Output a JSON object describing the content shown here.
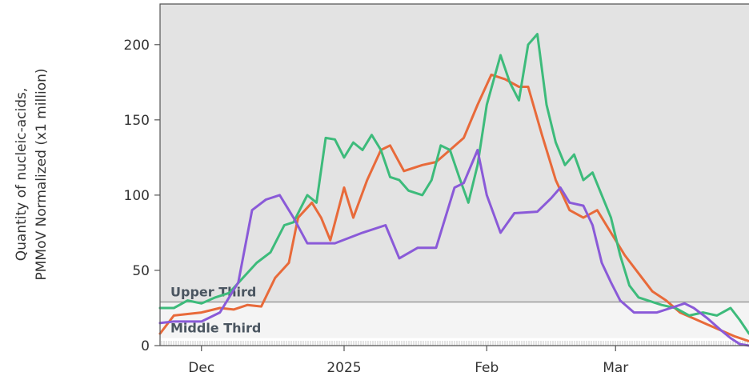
{
  "chart_data": {
    "type": "line",
    "ylabel_line1": "Quantity of nucleic-acids,",
    "ylabel_line2": "PMMoV Normalized (x1 million)",
    "x_ticks": [
      {
        "label": "Dec",
        "date": "2024-12-01"
      },
      {
        "label": "2025",
        "date": "2025-01-01"
      },
      {
        "label": "Feb",
        "date": "2025-02-01"
      },
      {
        "label": "Mar",
        "date": "2025-03-01"
      }
    ],
    "xlim": [
      "2024-11-22",
      "2025-03-30"
    ],
    "ylim": [
      0,
      227
    ],
    "y_ticks": [
      0,
      50,
      100,
      150,
      200
    ],
    "grid": false,
    "bands": [
      {
        "label": "Upper Third",
        "from": 29,
        "to": 227,
        "color": "#e3e3e3"
      },
      {
        "label": "Middle Third",
        "from": 5,
        "to": 29,
        "color": "#f4f4f4"
      }
    ],
    "series": [
      {
        "color": "#e86a3a",
        "points": [
          [
            "2024-11-22",
            8
          ],
          [
            "2024-11-25",
            20
          ],
          [
            "2024-12-01",
            22
          ],
          [
            "2024-12-05",
            25
          ],
          [
            "2024-12-08",
            24
          ],
          [
            "2024-12-11",
            27
          ],
          [
            "2024-12-14",
            26
          ],
          [
            "2024-12-17",
            45
          ],
          [
            "2024-12-20",
            55
          ],
          [
            "2024-12-22",
            85
          ],
          [
            "2024-12-25",
            95
          ],
          [
            "2024-12-27",
            85
          ],
          [
            "2024-12-29",
            70
          ],
          [
            "2025-01-01",
            105
          ],
          [
            "2025-01-03",
            85
          ],
          [
            "2025-01-06",
            110
          ],
          [
            "2025-01-09",
            130
          ],
          [
            "2025-01-11",
            133
          ],
          [
            "2025-01-14",
            116
          ],
          [
            "2025-01-18",
            120
          ],
          [
            "2025-01-21",
            122
          ],
          [
            "2025-01-24",
            130
          ],
          [
            "2025-01-27",
            138
          ],
          [
            "2025-01-30",
            160
          ],
          [
            "2025-02-02",
            180
          ],
          [
            "2025-02-05",
            177
          ],
          [
            "2025-02-08",
            172
          ],
          [
            "2025-02-10",
            172
          ],
          [
            "2025-02-13",
            140
          ],
          [
            "2025-02-16",
            110
          ],
          [
            "2025-02-19",
            90
          ],
          [
            "2025-02-22",
            85
          ],
          [
            "2025-02-25",
            90
          ],
          [
            "2025-02-28",
            75
          ],
          [
            "2025-03-03",
            60
          ],
          [
            "2025-03-06",
            48
          ],
          [
            "2025-03-09",
            36
          ],
          [
            "2025-03-12",
            30
          ],
          [
            "2025-03-15",
            22
          ],
          [
            "2025-03-18",
            18
          ],
          [
            "2025-03-21",
            14
          ],
          [
            "2025-03-24",
            10
          ],
          [
            "2025-03-27",
            6
          ],
          [
            "2025-03-30",
            3
          ]
        ]
      },
      {
        "color": "#3dbb7b",
        "points": [
          [
            "2024-11-22",
            25
          ],
          [
            "2024-11-25",
            25
          ],
          [
            "2024-11-28",
            30
          ],
          [
            "2024-12-01",
            28
          ],
          [
            "2024-12-04",
            32
          ],
          [
            "2024-12-07",
            35
          ],
          [
            "2024-12-10",
            45
          ],
          [
            "2024-12-13",
            55
          ],
          [
            "2024-12-16",
            62
          ],
          [
            "2024-12-19",
            80
          ],
          [
            "2024-12-21",
            82
          ],
          [
            "2024-12-24",
            100
          ],
          [
            "2024-12-26",
            95
          ],
          [
            "2024-12-28",
            138
          ],
          [
            "2024-12-30",
            137
          ],
          [
            "2025-01-01",
            125
          ],
          [
            "2025-01-03",
            135
          ],
          [
            "2025-01-05",
            130
          ],
          [
            "2025-01-07",
            140
          ],
          [
            "2025-01-09",
            130
          ],
          [
            "2025-01-11",
            112
          ],
          [
            "2025-01-13",
            110
          ],
          [
            "2025-01-15",
            103
          ],
          [
            "2025-01-18",
            100
          ],
          [
            "2025-01-20",
            110
          ],
          [
            "2025-01-22",
            133
          ],
          [
            "2025-01-24",
            130
          ],
          [
            "2025-01-26",
            112
          ],
          [
            "2025-01-28",
            95
          ],
          [
            "2025-01-30",
            120
          ],
          [
            "2025-02-01",
            160
          ],
          [
            "2025-02-04",
            193
          ],
          [
            "2025-02-06",
            175
          ],
          [
            "2025-02-08",
            163
          ],
          [
            "2025-02-10",
            200
          ],
          [
            "2025-02-12",
            207
          ],
          [
            "2025-02-14",
            160
          ],
          [
            "2025-02-16",
            135
          ],
          [
            "2025-02-18",
            120
          ],
          [
            "2025-02-20",
            127
          ],
          [
            "2025-02-22",
            110
          ],
          [
            "2025-02-24",
            115
          ],
          [
            "2025-02-26",
            100
          ],
          [
            "2025-02-28",
            85
          ],
          [
            "2025-03-02",
            60
          ],
          [
            "2025-03-04",
            40
          ],
          [
            "2025-03-06",
            32
          ],
          [
            "2025-03-08",
            30
          ],
          [
            "2025-03-11",
            27
          ],
          [
            "2025-03-14",
            25
          ],
          [
            "2025-03-17",
            20
          ],
          [
            "2025-03-20",
            22
          ],
          [
            "2025-03-23",
            20
          ],
          [
            "2025-03-26",
            25
          ],
          [
            "2025-03-28",
            17
          ],
          [
            "2025-03-30",
            8
          ]
        ]
      },
      {
        "color": "#8a5ad8",
        "points": [
          [
            "2024-11-22",
            15
          ],
          [
            "2024-11-25",
            16
          ],
          [
            "2024-12-01",
            16
          ],
          [
            "2024-12-05",
            22
          ],
          [
            "2024-12-09",
            42
          ],
          [
            "2024-12-12",
            90
          ],
          [
            "2024-12-15",
            97
          ],
          [
            "2024-12-18",
            100
          ],
          [
            "2024-12-21",
            85
          ],
          [
            "2024-12-24",
            68
          ],
          [
            "2024-12-30",
            68
          ],
          [
            "2025-01-05",
            75
          ],
          [
            "2025-01-10",
            80
          ],
          [
            "2025-01-13",
            58
          ],
          [
            "2025-01-17",
            65
          ],
          [
            "2025-01-21",
            65
          ],
          [
            "2025-01-25",
            105
          ],
          [
            "2025-01-27",
            108
          ],
          [
            "2025-01-30",
            130
          ],
          [
            "2025-02-01",
            100
          ],
          [
            "2025-02-04",
            75
          ],
          [
            "2025-02-07",
            88
          ],
          [
            "2025-02-12",
            89
          ],
          [
            "2025-02-15",
            98
          ],
          [
            "2025-02-17",
            105
          ],
          [
            "2025-02-19",
            95
          ],
          [
            "2025-02-22",
            93
          ],
          [
            "2025-02-24",
            80
          ],
          [
            "2025-02-26",
            55
          ],
          [
            "2025-02-28",
            42
          ],
          [
            "2025-03-02",
            30
          ],
          [
            "2025-03-05",
            22
          ],
          [
            "2025-03-10",
            22
          ],
          [
            "2025-03-13",
            25
          ],
          [
            "2025-03-16",
            28
          ],
          [
            "2025-03-18",
            25
          ],
          [
            "2025-03-21",
            18
          ],
          [
            "2025-03-24",
            10
          ],
          [
            "2025-03-26",
            5
          ],
          [
            "2025-03-28",
            1
          ],
          [
            "2025-03-30",
            0
          ]
        ]
      }
    ]
  }
}
